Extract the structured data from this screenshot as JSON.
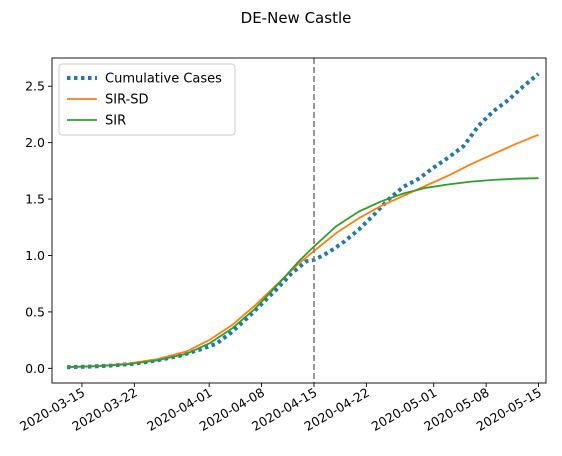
{
  "chart_data": {
    "type": "line",
    "title": "DE-New Castle",
    "xlabel": "",
    "ylabel": "",
    "x_axis_type": "date",
    "xlim": [
      "2020-03-11",
      "2020-05-16"
    ],
    "ylim": [
      -0.13,
      2.75
    ],
    "x_ticks": [
      "2020-03-15",
      "2020-03-22",
      "2020-04-01",
      "2020-04-08",
      "2020-04-15",
      "2020-04-22",
      "2020-05-01",
      "2020-05-08",
      "2020-05-15"
    ],
    "y_ticks": [
      "0.0",
      "0.5",
      "1.0",
      "1.5",
      "2.0",
      "2.5"
    ],
    "grid": false,
    "legend_position": "top-left",
    "annotations": [
      {
        "type": "vertical-dashed-line",
        "x": "2020-04-15",
        "color": "#7f7f7f"
      }
    ],
    "series": [
      {
        "name": "Cumulative Cases",
        "style": "dotted",
        "color": "#1f77b4",
        "points": [
          [
            "2020-03-13",
            0.01
          ],
          [
            "2020-03-16",
            0.015
          ],
          [
            "2020-03-19",
            0.025
          ],
          [
            "2020-03-22",
            0.04
          ],
          [
            "2020-03-25",
            0.07
          ],
          [
            "2020-03-28",
            0.11
          ],
          [
            "2020-03-31",
            0.17
          ],
          [
            "2020-04-02",
            0.22
          ],
          [
            "2020-04-04",
            0.32
          ],
          [
            "2020-04-06",
            0.44
          ],
          [
            "2020-04-08",
            0.57
          ],
          [
            "2020-04-10",
            0.7
          ],
          [
            "2020-04-12",
            0.84
          ],
          [
            "2020-04-14",
            0.95
          ],
          [
            "2020-04-15",
            0.96
          ],
          [
            "2020-04-17",
            1.03
          ],
          [
            "2020-04-19",
            1.12
          ],
          [
            "2020-04-21",
            1.23
          ],
          [
            "2020-04-23",
            1.36
          ],
          [
            "2020-04-25",
            1.5
          ],
          [
            "2020-04-27",
            1.61
          ],
          [
            "2020-04-29",
            1.68
          ],
          [
            "2020-05-01",
            1.78
          ],
          [
            "2020-05-03",
            1.87
          ],
          [
            "2020-05-05",
            1.97
          ],
          [
            "2020-05-07",
            2.15
          ],
          [
            "2020-05-09",
            2.28
          ],
          [
            "2020-05-11",
            2.38
          ],
          [
            "2020-05-13",
            2.5
          ],
          [
            "2020-05-15",
            2.61
          ]
        ]
      },
      {
        "name": "SIR-SD",
        "style": "solid",
        "color": "#ff7f0e",
        "points": [
          [
            "2020-03-13",
            0.01
          ],
          [
            "2020-03-17",
            0.02
          ],
          [
            "2020-03-21",
            0.04
          ],
          [
            "2020-03-25",
            0.08
          ],
          [
            "2020-03-29",
            0.15
          ],
          [
            "2020-04-01",
            0.25
          ],
          [
            "2020-04-04",
            0.38
          ],
          [
            "2020-04-07",
            0.55
          ],
          [
            "2020-04-10",
            0.74
          ],
          [
            "2020-04-13",
            0.93
          ],
          [
            "2020-04-15",
            1.04
          ],
          [
            "2020-04-18",
            1.2
          ],
          [
            "2020-04-21",
            1.33
          ],
          [
            "2020-04-24",
            1.44
          ],
          [
            "2020-04-27",
            1.53
          ],
          [
            "2020-04-30",
            1.62
          ],
          [
            "2020-05-03",
            1.71
          ],
          [
            "2020-05-06",
            1.81
          ],
          [
            "2020-05-09",
            1.9
          ],
          [
            "2020-05-12",
            1.99
          ],
          [
            "2020-05-15",
            2.07
          ]
        ]
      },
      {
        "name": "SIR",
        "style": "solid",
        "color": "#2ca02c",
        "points": [
          [
            "2020-03-13",
            0.01
          ],
          [
            "2020-03-17",
            0.02
          ],
          [
            "2020-03-21",
            0.035
          ],
          [
            "2020-03-25",
            0.07
          ],
          [
            "2020-03-29",
            0.13
          ],
          [
            "2020-04-01",
            0.22
          ],
          [
            "2020-04-04",
            0.35
          ],
          [
            "2020-04-07",
            0.52
          ],
          [
            "2020-04-10",
            0.73
          ],
          [
            "2020-04-13",
            0.95
          ],
          [
            "2020-04-15",
            1.08
          ],
          [
            "2020-04-18",
            1.26
          ],
          [
            "2020-04-21",
            1.39
          ],
          [
            "2020-04-24",
            1.48
          ],
          [
            "2020-04-27",
            1.55
          ],
          [
            "2020-04-30",
            1.6
          ],
          [
            "2020-05-03",
            1.63
          ],
          [
            "2020-05-06",
            1.655
          ],
          [
            "2020-05-09",
            1.67
          ],
          [
            "2020-05-12",
            1.68
          ],
          [
            "2020-05-15",
            1.685
          ]
        ]
      }
    ]
  }
}
